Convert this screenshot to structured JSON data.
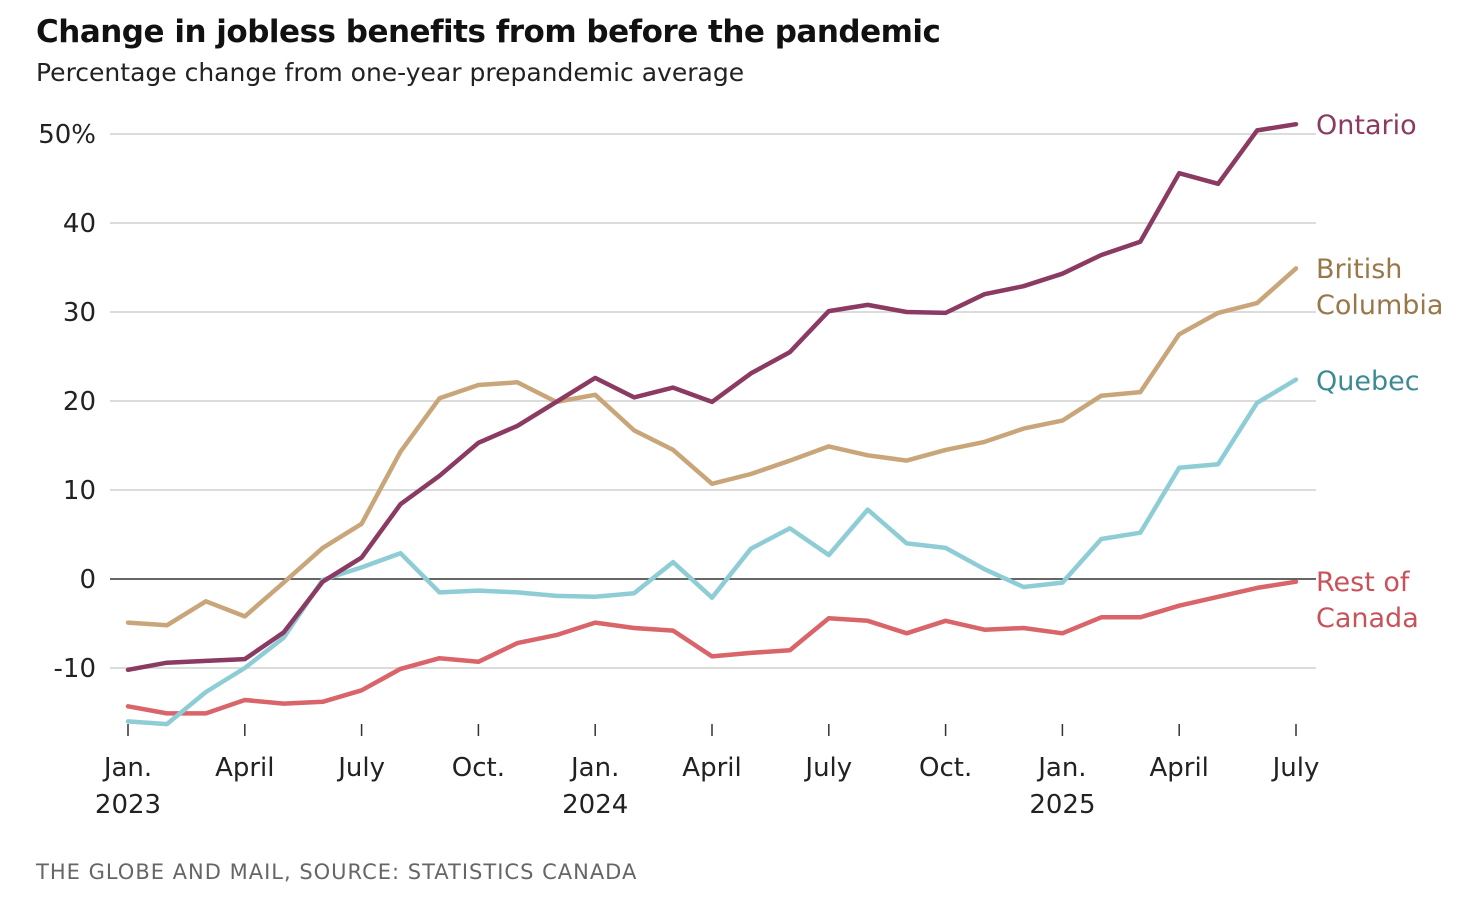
{
  "chart_data": {
    "type": "line",
    "title": "Change in jobless benefits from before the pandemic",
    "subtitle": "Percentage change from one-year prepandemic average",
    "source": "THE GLOBE AND MAIL, SOURCE: STATISTICS CANADA",
    "xlabel": "",
    "ylabel": "",
    "ylim": [
      -17,
      52
    ],
    "y_ticks": [
      -10,
      0,
      10,
      20,
      30,
      40,
      50
    ],
    "y_tick_labels": [
      "-10",
      "0",
      "10",
      "20",
      "30",
      "40",
      "50%"
    ],
    "x_ticks": [
      {
        "month_index": 0,
        "label": "Jan.",
        "year": "2023"
      },
      {
        "month_index": 3,
        "label": "April",
        "year": ""
      },
      {
        "month_index": 6,
        "label": "July",
        "year": ""
      },
      {
        "month_index": 9,
        "label": "Oct.",
        "year": ""
      },
      {
        "month_index": 12,
        "label": "Jan.",
        "year": "2024"
      },
      {
        "month_index": 15,
        "label": "April",
        "year": ""
      },
      {
        "month_index": 18,
        "label": "July",
        "year": ""
      },
      {
        "month_index": 21,
        "label": "Oct.",
        "year": ""
      },
      {
        "month_index": 24,
        "label": "Jan.",
        "year": "2025"
      },
      {
        "month_index": 27,
        "label": "April",
        "year": ""
      },
      {
        "month_index": 30,
        "label": "July",
        "year": ""
      }
    ],
    "x_range": [
      "Jan. 2023",
      "July 2025"
    ],
    "grid": true,
    "series": [
      {
        "name": "Ontario",
        "label_lines": [
          "Ontario"
        ],
        "color": "#8b3a62",
        "label_color": "#8b3a62",
        "values": [
          -10.2,
          -9.4,
          -9.2,
          -9.0,
          -6.0,
          -0.3,
          2.4,
          8.4,
          11.6,
          15.3,
          17.2,
          19.9,
          22.6,
          20.4,
          21.5,
          19.9,
          23.1,
          25.5,
          30.1,
          30.8,
          30.0,
          29.9,
          32.0,
          32.9,
          34.3,
          36.4,
          37.9,
          45.6,
          44.4,
          50.4,
          51.1
        ]
      },
      {
        "name": "British Columbia",
        "label_lines": [
          "British",
          "Columbia"
        ],
        "color": "#c9a67a",
        "label_color": "#9a7748",
        "values": [
          -4.9,
          -5.2,
          -2.5,
          -4.2,
          -0.4,
          3.5,
          6.2,
          14.3,
          20.3,
          21.8,
          22.1,
          19.9,
          20.7,
          16.7,
          14.5,
          10.7,
          11.8,
          13.3,
          14.9,
          13.9,
          13.3,
          14.5,
          15.4,
          16.9,
          17.8,
          20.6,
          21.0,
          27.5,
          29.9,
          31.0,
          34.9
        ]
      },
      {
        "name": "Quebec",
        "label_lines": [
          "Quebec"
        ],
        "color": "#8ecdd6",
        "label_color": "#3d8b92",
        "values": [
          -16.0,
          -16.3,
          -12.7,
          -10.0,
          -6.6,
          -0.1,
          1.3,
          2.9,
          -1.5,
          -1.3,
          -1.5,
          -1.9,
          -2.0,
          -1.6,
          1.9,
          -2.1,
          3.4,
          5.7,
          2.7,
          7.8,
          4.0,
          3.5,
          1.1,
          -0.9,
          -0.4,
          4.5,
          5.2,
          12.5,
          12.9,
          19.8,
          22.4
        ]
      },
      {
        "name": "Rest of Canada",
        "label_lines": [
          "Rest of",
          "Canada"
        ],
        "color": "#d9646a",
        "label_color": "#c9525a",
        "values": [
          -14.3,
          -15.1,
          -15.1,
          -13.6,
          -14.0,
          -13.8,
          -12.5,
          -10.1,
          -8.9,
          -9.3,
          -7.2,
          -6.3,
          -4.9,
          -5.5,
          -5.8,
          -8.7,
          -8.3,
          -8.0,
          -4.4,
          -4.7,
          -6.1,
          -4.7,
          -5.7,
          -5.5,
          -6.1,
          -4.3,
          -4.3,
          -3.0,
          -2.0,
          -1.0,
          -0.3
        ]
      }
    ]
  }
}
